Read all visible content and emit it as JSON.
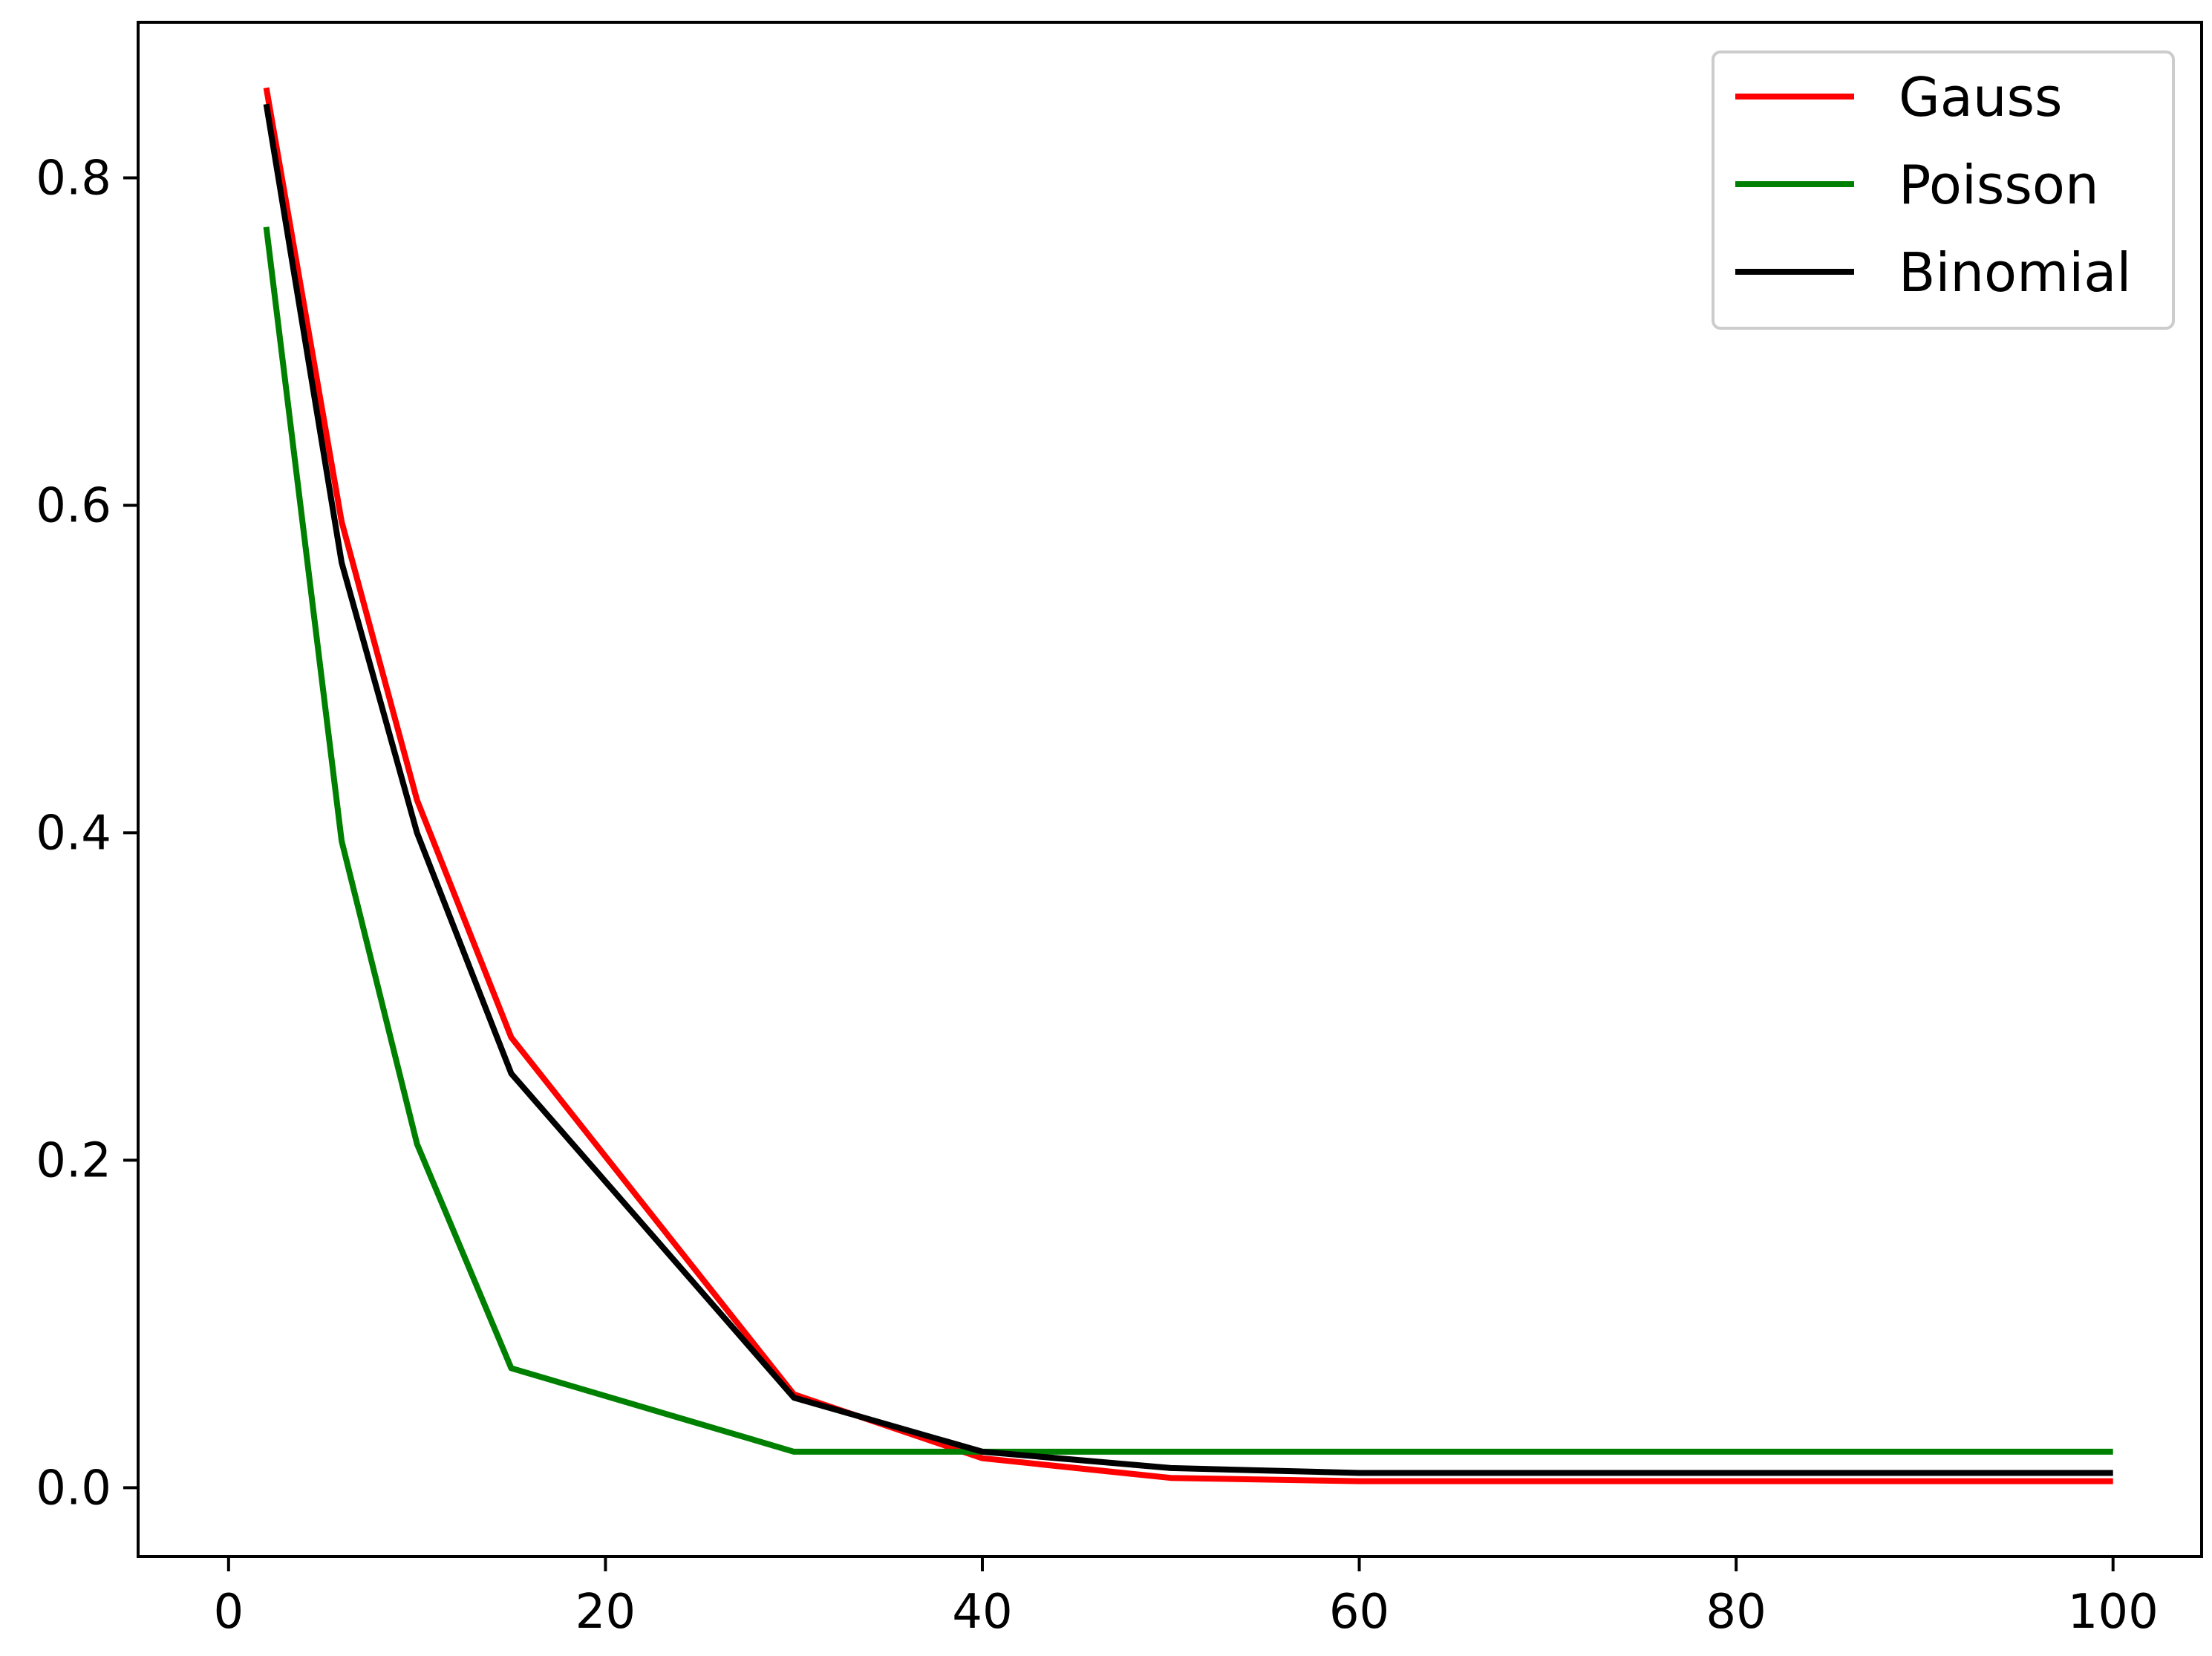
{
  "chart_data": {
    "type": "line",
    "title": "",
    "xlabel": "",
    "ylabel": "",
    "xlim": [
      -4.8,
      104.7
    ],
    "ylim": [
      -0.042,
      0.895
    ],
    "x_ticks": [
      0,
      20,
      40,
      60,
      80,
      100
    ],
    "x_tick_labels": [
      "0",
      "20",
      "40",
      "60",
      "80",
      "100"
    ],
    "y_ticks": [
      0.0,
      0.2,
      0.4,
      0.6,
      0.8
    ],
    "y_tick_labels": [
      "0.0",
      "0.2",
      "0.4",
      "0.6",
      "0.8"
    ],
    "grid": false,
    "legend_position": "top-right",
    "x": [
      2,
      6,
      10,
      15,
      30,
      40,
      50,
      60,
      70,
      80,
      90,
      100
    ],
    "series": [
      {
        "name": "Gauss",
        "color": "#ff0000",
        "values": [
          0.855,
          0.59,
          0.42,
          0.275,
          0.057,
          0.018,
          0.006,
          0.004,
          0.004,
          0.004,
          0.004,
          0.004
        ]
      },
      {
        "name": "Poisson",
        "color": "#008000",
        "values": [
          0.77,
          0.395,
          0.21,
          0.073,
          0.022,
          0.022,
          0.022,
          0.022,
          0.022,
          0.022,
          0.022,
          0.022
        ]
      },
      {
        "name": "Binomial",
        "color": "#000000",
        "values": [
          0.845,
          0.565,
          0.4,
          0.253,
          0.055,
          0.022,
          0.012,
          0.009,
          0.009,
          0.009,
          0.009,
          0.009
        ]
      }
    ]
  }
}
